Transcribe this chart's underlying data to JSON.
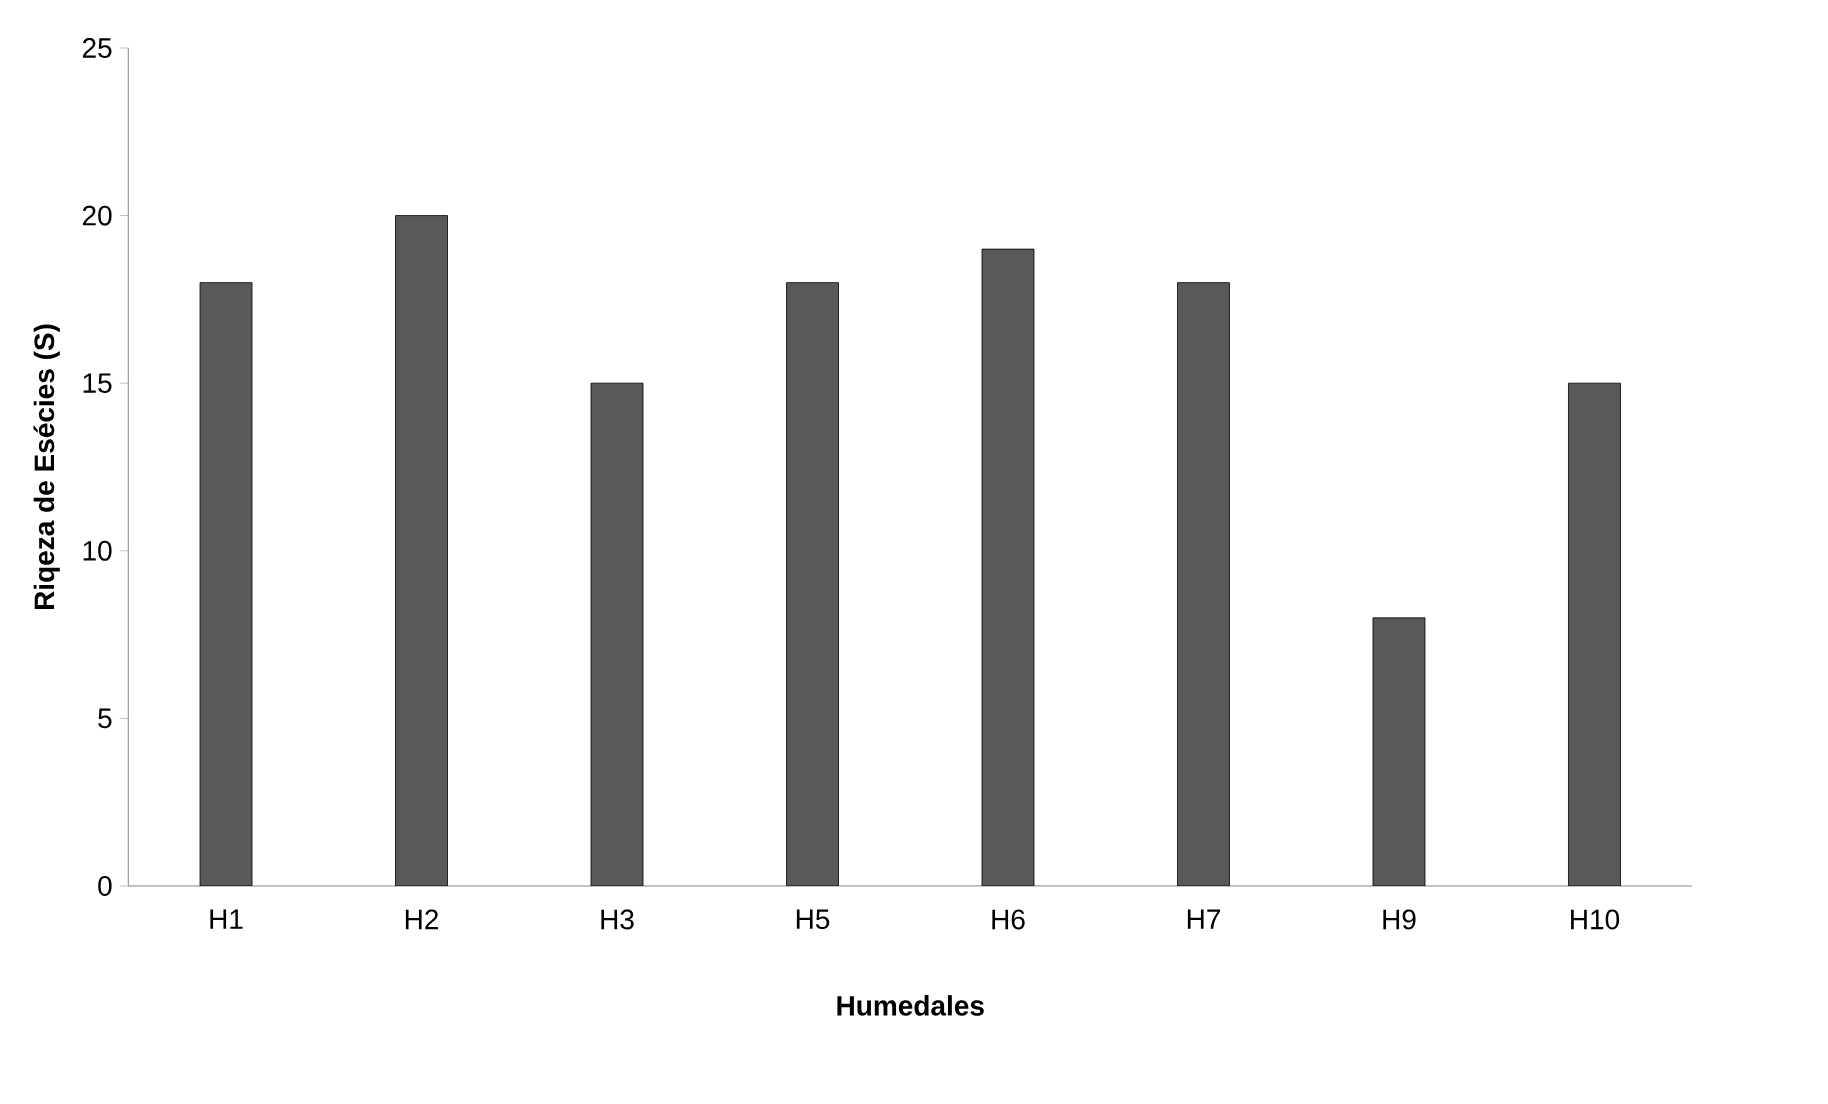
{
  "chart_data": {
    "type": "bar",
    "xlabel": "Humedales",
    "ylabel": "Riqeza de Esécies (S)",
    "categories": [
      "H1",
      "H2",
      "H3",
      "H5",
      "H6",
      "H7",
      "H9",
      "H10"
    ],
    "values": [
      18,
      20,
      15,
      18,
      19,
      18,
      8,
      15
    ],
    "color": "#595959",
    "ylim": [
      0,
      25
    ],
    "yticks": [
      0,
      5,
      10,
      15,
      20,
      25
    ]
  }
}
